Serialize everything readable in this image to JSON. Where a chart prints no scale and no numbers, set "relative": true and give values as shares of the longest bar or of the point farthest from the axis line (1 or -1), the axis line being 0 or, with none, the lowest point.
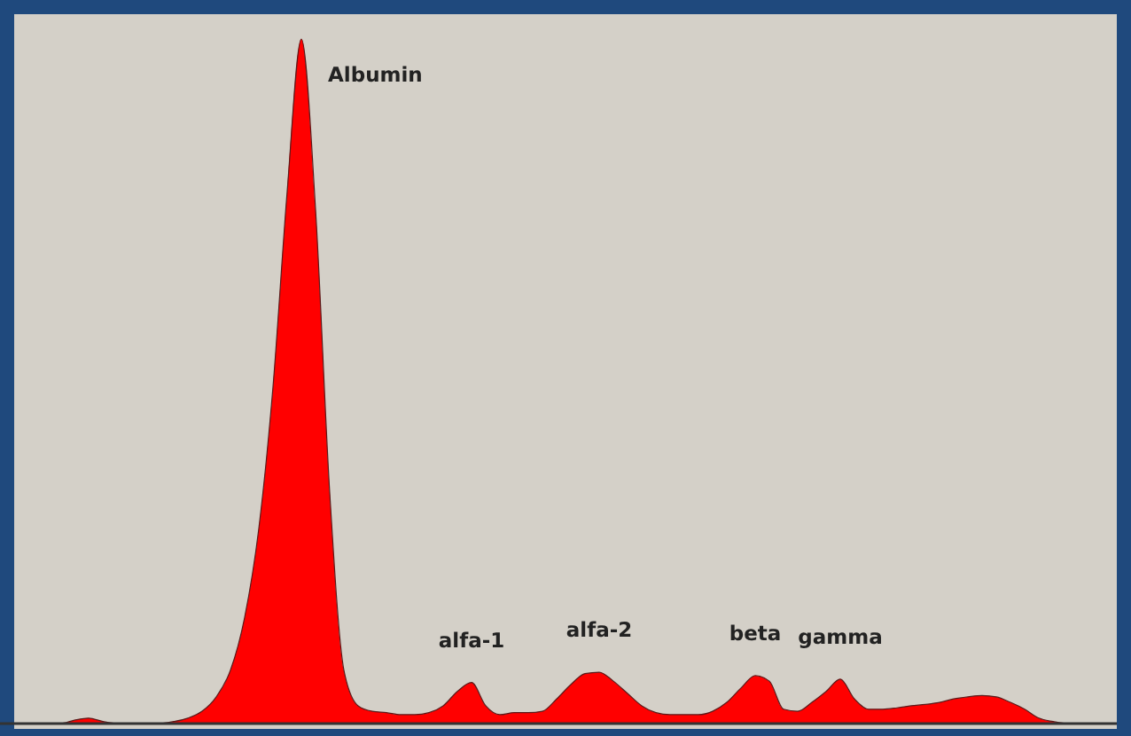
{
  "chart_data": {
    "type": "area",
    "relative": true,
    "categories": [
      null,
      null,
      null,
      null,
      null,
      null,
      null,
      null,
      null,
      null,
      null,
      null,
      null,
      null,
      null,
      null,
      null,
      null,
      null,
      null,
      null,
      null,
      null,
      null,
      null,
      null,
      null,
      null,
      null,
      null,
      null,
      null,
      null,
      null,
      null,
      null,
      null,
      null,
      null,
      null,
      null,
      null,
      null,
      null,
      null,
      null,
      null,
      null,
      null,
      null,
      null,
      null,
      null,
      null,
      null,
      null,
      null,
      null,
      null,
      null,
      null,
      null,
      null,
      null,
      null,
      null,
      null,
      null,
      null,
      null,
      null,
      null,
      null,
      null,
      null,
      null
    ],
    "series": [
      {
        "color": "#ff0000",
        "values": [
          0,
          0,
          0,
          0,
          0.005,
          0.008,
          0.003,
          0,
          0,
          0,
          0,
          0.003,
          0.008,
          0.018,
          0.039,
          0.078,
          0.155,
          0.285,
          0.492,
          0.777,
          1,
          0.751,
          0.337,
          0.078,
          0.026,
          0.018,
          0.016,
          0.013,
          0.013,
          0.016,
          0.026,
          0.047,
          0.06,
          0.026,
          0.013,
          0.016,
          0.016,
          0.018,
          0.036,
          0.057,
          0.073,
          0.075,
          0.062,
          0.044,
          0.026,
          0.016,
          0.013,
          0.013,
          0.013,
          0.018,
          0.031,
          0.052,
          0.07,
          0.062,
          0.021,
          0.018,
          0.031,
          0.047,
          0.065,
          0.036,
          0.021,
          0.021,
          0.023,
          0.026,
          0.028,
          0.031,
          0.036,
          0.039,
          0.041,
          0.039,
          0.031,
          0.021,
          0.008,
          0.003,
          0,
          0
        ]
      }
    ],
    "annotations": [
      "Albumin",
      "alfa-1",
      "alfa-2",
      "beta",
      "gamma"
    ]
  }
}
